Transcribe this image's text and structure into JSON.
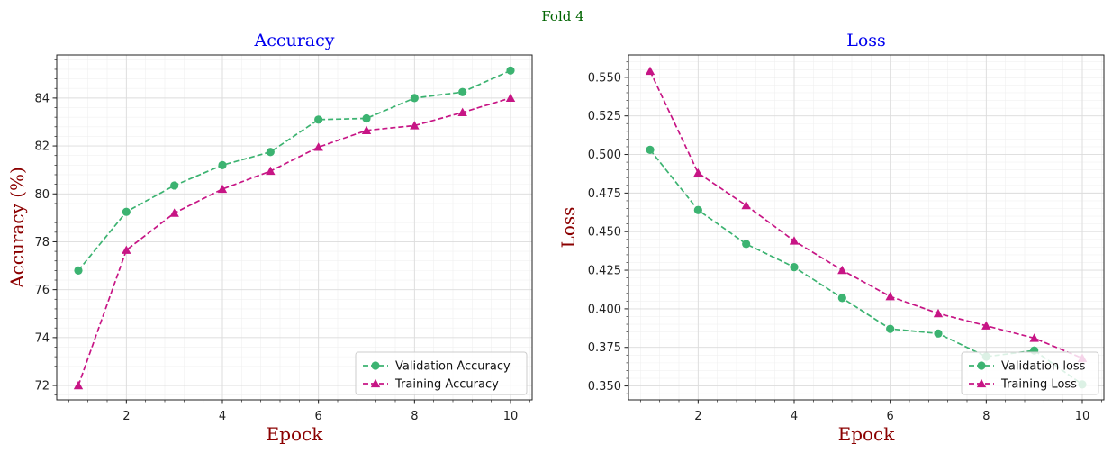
{
  "figure_title": "Fold 4",
  "chart_data": [
    {
      "type": "line",
      "title": "Accuracy",
      "xlabel": "Epock",
      "ylabel": "Accuracy (%)",
      "x": [
        1,
        2,
        3,
        4,
        5,
        6,
        7,
        8,
        9,
        10
      ],
      "xlim": [
        0.55,
        10.45
      ],
      "ylim": [
        71.4,
        85.8
      ],
      "xticks": [
        2,
        4,
        6,
        8,
        10
      ],
      "yticks": [
        72,
        74,
        76,
        78,
        80,
        82,
        84
      ],
      "ytick_labels": [
        "72",
        "74",
        "76",
        "78",
        "80",
        "82",
        "84"
      ],
      "grid": true,
      "minor_grid": true,
      "legend_position": "lower right",
      "series": [
        {
          "name": "Validation Accuracy",
          "color": "#3cb371",
          "marker": "circle",
          "linestyle": "dashed",
          "values": [
            76.8,
            79.25,
            80.35,
            81.2,
            81.75,
            83.1,
            83.15,
            84.0,
            84.25,
            85.15
          ]
        },
        {
          "name": "Training Accuracy",
          "color": "#c71585",
          "marker": "triangle",
          "linestyle": "dashed",
          "values": [
            72.0,
            77.65,
            79.2,
            80.2,
            80.95,
            81.95,
            82.65,
            82.85,
            83.4,
            84.0
          ]
        }
      ]
    },
    {
      "type": "line",
      "title": "Loss",
      "xlabel": "Epock",
      "ylabel": "Loss",
      "x": [
        1,
        2,
        3,
        4,
        5,
        6,
        7,
        8,
        9,
        10
      ],
      "xlim": [
        0.55,
        10.45
      ],
      "ylim": [
        0.341,
        0.5645
      ],
      "xticks": [
        2,
        4,
        6,
        8,
        10
      ],
      "yticks": [
        0.35,
        0.375,
        0.4,
        0.425,
        0.45,
        0.475,
        0.5,
        0.525,
        0.55
      ],
      "ytick_labels": [
        "0.350",
        "0.375",
        "0.400",
        "0.425",
        "0.450",
        "0.475",
        "0.500",
        "0.525",
        "0.550"
      ],
      "grid": true,
      "minor_grid": true,
      "legend_position": "lower right",
      "series": [
        {
          "name": "Validation loss",
          "color": "#3cb371",
          "marker": "circle",
          "linestyle": "dashed",
          "values": [
            0.503,
            0.464,
            0.442,
            0.427,
            0.407,
            0.387,
            0.384,
            0.369,
            0.373,
            0.351
          ]
        },
        {
          "name": "Training Loss",
          "color": "#c71585",
          "marker": "triangle",
          "linestyle": "dashed",
          "values": [
            0.554,
            0.488,
            0.467,
            0.444,
            0.425,
            0.408,
            0.397,
            0.389,
            0.381,
            0.368
          ]
        }
      ]
    }
  ]
}
